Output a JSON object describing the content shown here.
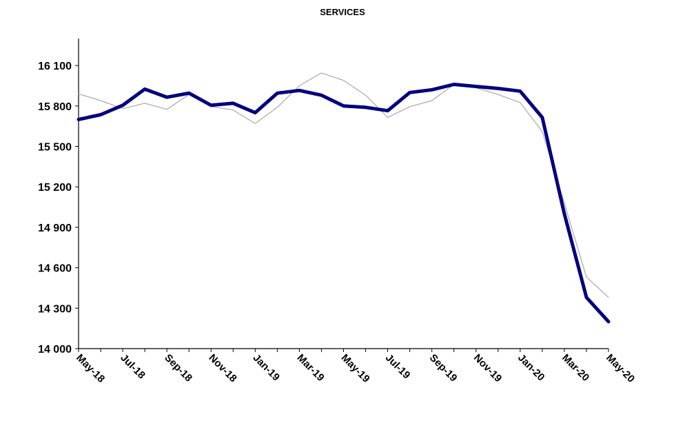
{
  "chart_data": {
    "type": "line",
    "title": "SERVICES",
    "xlabel": "",
    "ylabel": "",
    "ylim": [
      14000,
      16300
    ],
    "yticks": [
      {
        "value": 14000,
        "label": "14 000"
      },
      {
        "value": 14300,
        "label": "14 300"
      },
      {
        "value": 14600,
        "label": "14 600"
      },
      {
        "value": 14900,
        "label": "14 900"
      },
      {
        "value": 15200,
        "label": "15 200"
      },
      {
        "value": 15500,
        "label": "15 500"
      },
      {
        "value": 15800,
        "label": "15 800"
      },
      {
        "value": 16100,
        "label": "16 100"
      }
    ],
    "categories": [
      "May-18",
      "Jun-18",
      "Jul-18",
      "Aug-18",
      "Sep-18",
      "Oct-18",
      "Nov-18",
      "Dec-18",
      "Jan-19",
      "Feb-19",
      "Mar-19",
      "Apr-19",
      "May-19",
      "Jun-19",
      "Jul-19",
      "Aug-19",
      "Sep-19",
      "Oct-19",
      "Nov-19",
      "Dec-19",
      "Jan-20",
      "Feb-20",
      "Mar-20",
      "Apr-20",
      "May-20"
    ],
    "xtick_labels": [
      "May-18",
      "Jul-18",
      "Sep-18",
      "Nov-18",
      "Jan-19",
      "Mar-19",
      "May-19",
      "Jul-19",
      "Sep-19",
      "Nov-19",
      "Jan-20",
      "Mar-20",
      "May-20"
    ],
    "grid": false,
    "legend": "none",
    "series": [
      {
        "color": "#000080",
        "style": "thick",
        "values": [
          15700,
          15735,
          15805,
          15925,
          15865,
          15895,
          15805,
          15820,
          15750,
          15895,
          15915,
          15880,
          15800,
          15790,
          15765,
          15900,
          15920,
          15960,
          15945,
          15930,
          15910,
          15715,
          15000,
          14380,
          14200
        ]
      },
      {
        "color": "#a6a6a6",
        "style": "thin",
        "values": [
          15890,
          15840,
          15780,
          15820,
          15775,
          15885,
          15795,
          15770,
          15670,
          15790,
          15950,
          16045,
          15990,
          15880,
          15715,
          15795,
          15840,
          15960,
          15935,
          15885,
          15825,
          15610,
          15080,
          14530,
          14380
        ]
      }
    ]
  }
}
